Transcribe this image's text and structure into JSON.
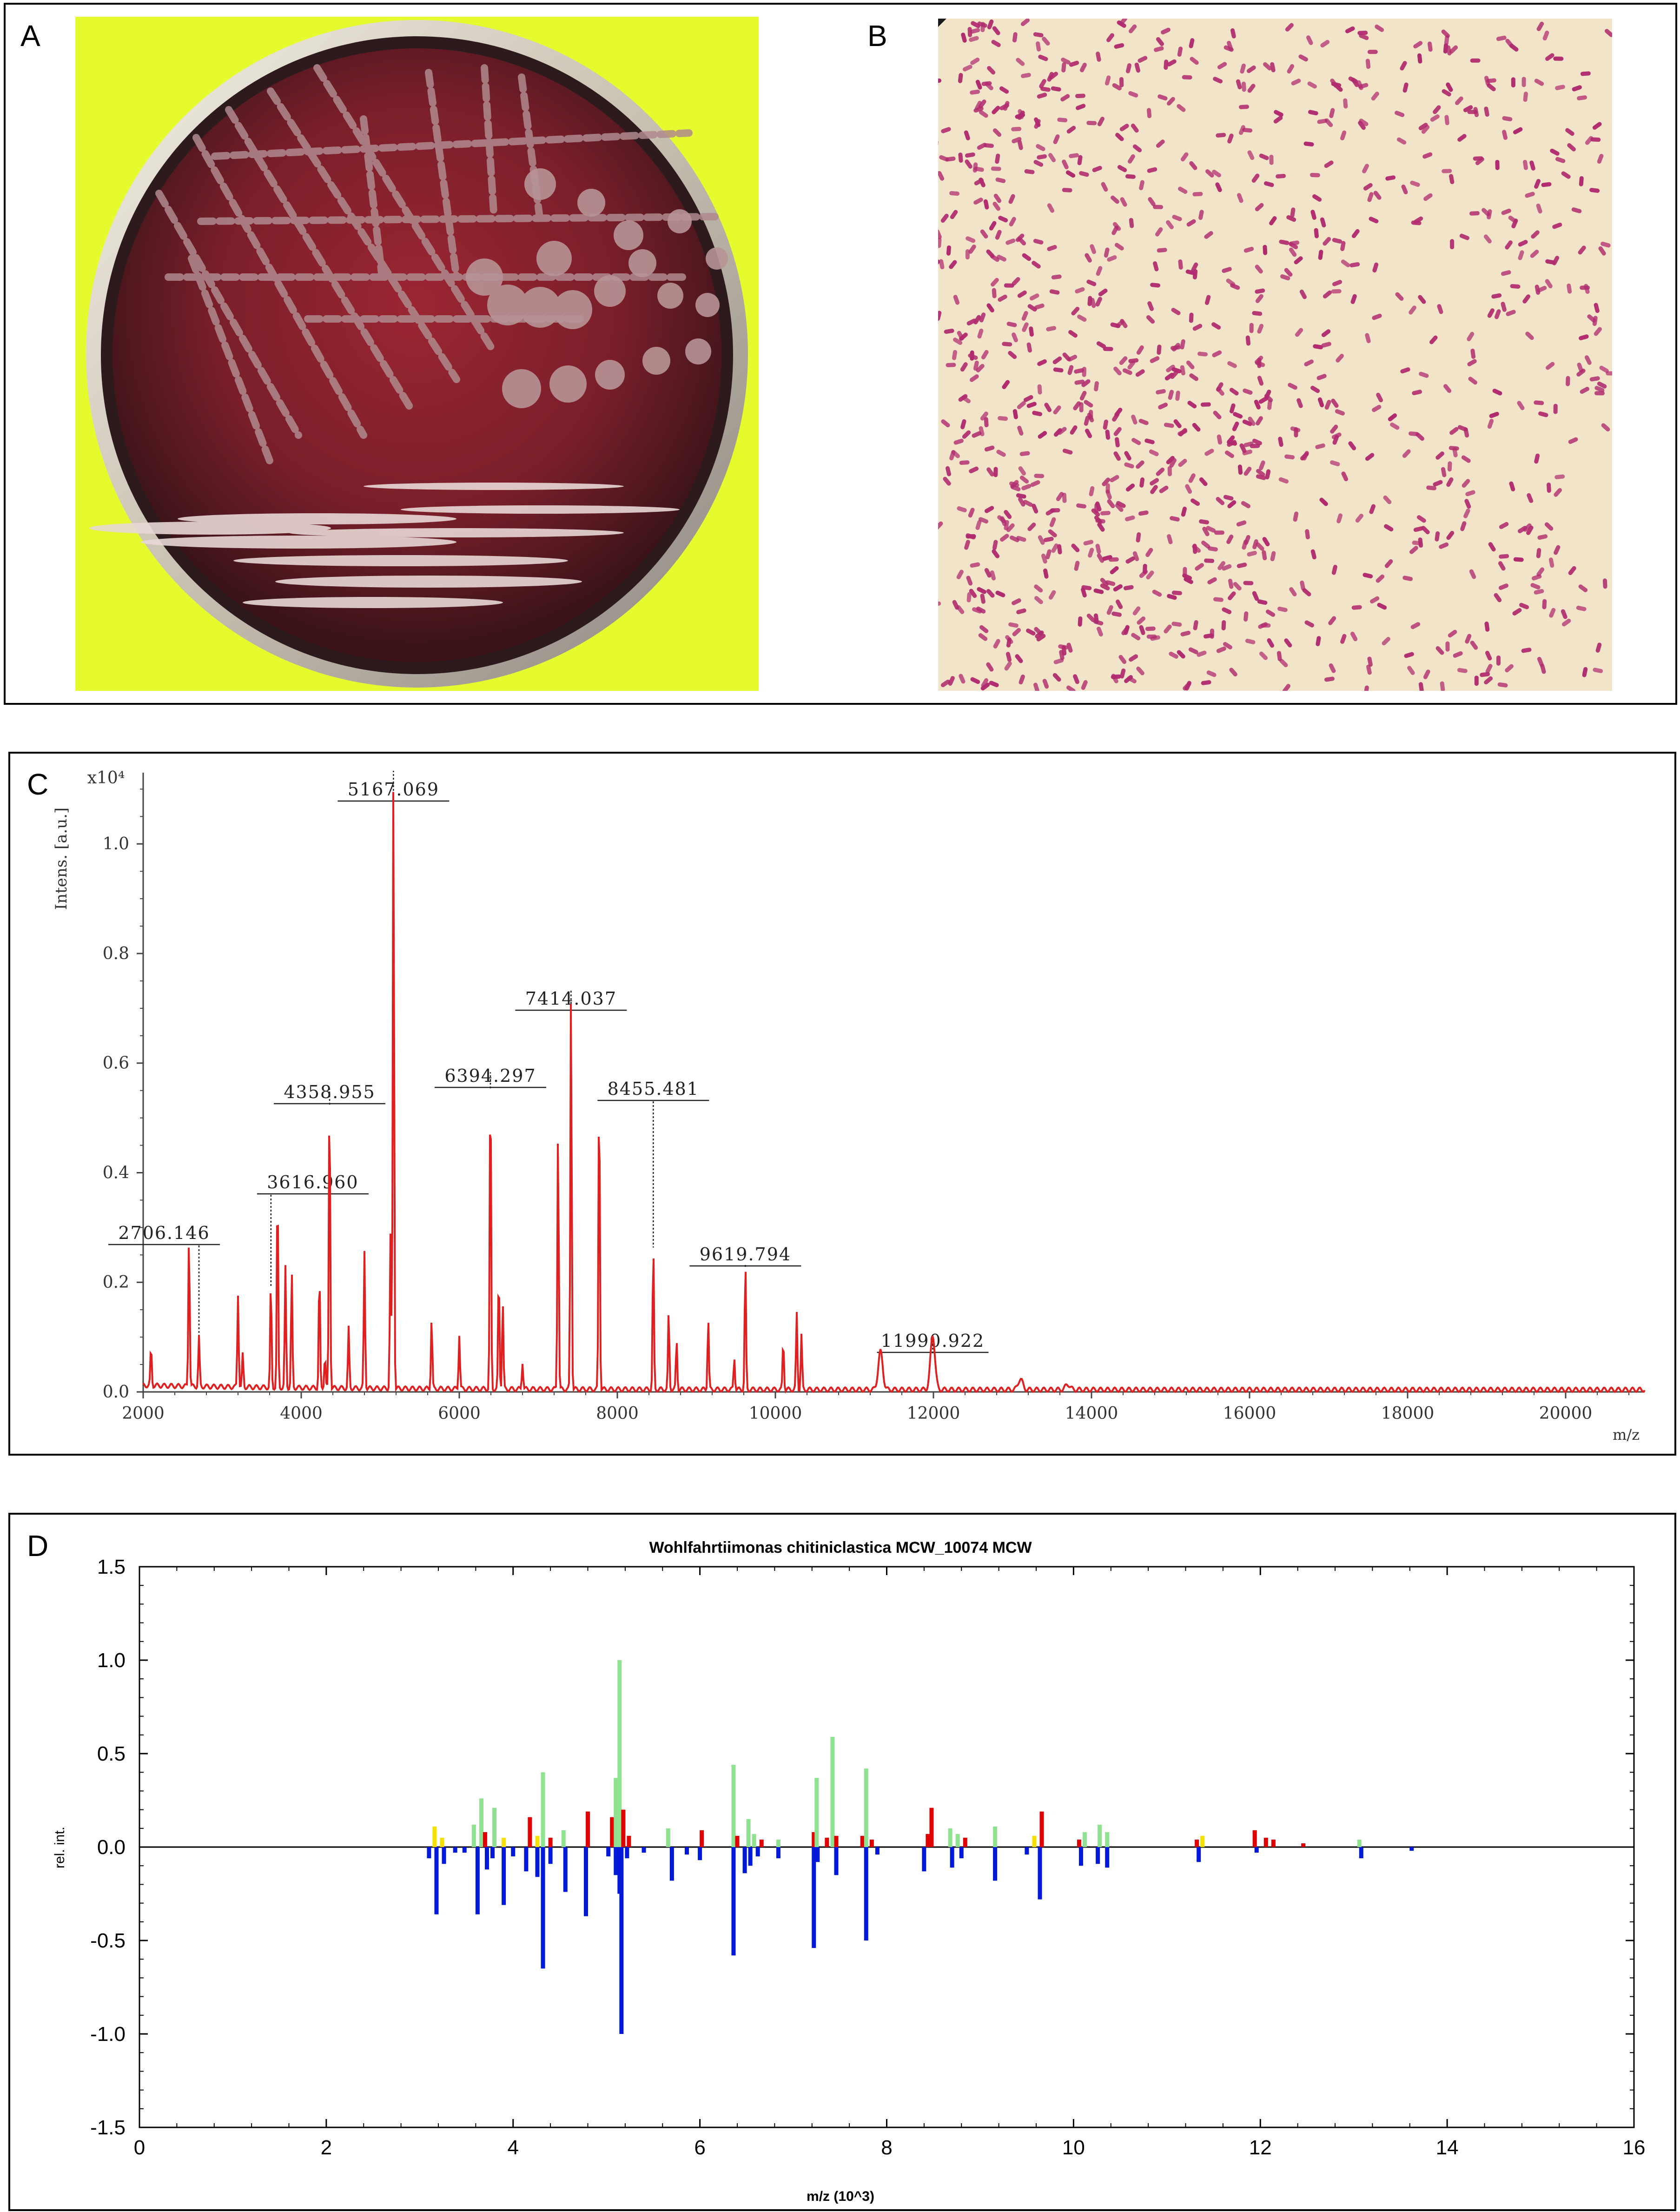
{
  "panels": {
    "a": {
      "letter": "A"
    },
    "b": {
      "letter": "B"
    },
    "c": {
      "letter": "C"
    },
    "d": {
      "letter": "D"
    }
  },
  "colors": {
    "plate_background": "#e6fb2d",
    "agar": "#7a1f2a",
    "gram_stain": "#b02a6e",
    "gram_background": "#f1e4c8",
    "spectrum_line": "#e02020",
    "match_green": "#8fe28f",
    "match_red": "#e00000",
    "match_yellow": "#f5e000",
    "reference_blue": "#0018d8"
  },
  "chart_data": [
    {
      "type": "line",
      "panel": "C",
      "ylabel": "Intens. [a.u.]",
      "y_multiplier": "x10⁴",
      "xlabel": "m/z",
      "xlim": [
        2000,
        21000
      ],
      "ylim": [
        0,
        1.13
      ],
      "x_ticks": [
        "2000",
        "4000",
        "6000",
        "8000",
        "10000",
        "12000",
        "14000",
        "16000",
        "18000",
        "20000"
      ],
      "y_ticks": [
        "0.0",
        "0.2",
        "0.4",
        "0.6",
        "0.8",
        "1.0"
      ],
      "peak_labels": [
        {
          "text": "2706.146",
          "x": 2706,
          "y": 0.09
        },
        {
          "text": "3616.960",
          "x": 3617,
          "y": 0.19
        },
        {
          "text": "4358.955",
          "x": 4359,
          "y": 0.55
        },
        {
          "text": "5167.069",
          "x": 5167,
          "y": 1.13
        },
        {
          "text": "6394.297",
          "x": 6394,
          "y": 0.58
        },
        {
          "text": "7414.037",
          "x": 7414,
          "y": 0.73
        },
        {
          "text": "8455.481",
          "x": 8455,
          "y": 0.26
        },
        {
          "text": "9619.794",
          "x": 9620,
          "y": 0.23
        },
        {
          "text": "11990.922",
          "x": 11991,
          "y": 0.1
        }
      ],
      "peaks": [
        [
          2100,
          0.07
        ],
        [
          2580,
          0.28
        ],
        [
          2706,
          0.09
        ],
        [
          3200,
          0.17
        ],
        [
          3260,
          0.06
        ],
        [
          3616,
          0.19
        ],
        [
          3700,
          0.37
        ],
        [
          3800,
          0.22
        ],
        [
          3880,
          0.21
        ],
        [
          4230,
          0.21
        ],
        [
          4300,
          0.06
        ],
        [
          4358,
          0.55
        ],
        [
          4600,
          0.11
        ],
        [
          4800,
          0.25
        ],
        [
          5130,
          0.28
        ],
        [
          5167,
          1.13
        ],
        [
          5650,
          0.13
        ],
        [
          6000,
          0.1
        ],
        [
          6394,
          0.58
        ],
        [
          6500,
          0.21
        ],
        [
          6550,
          0.16
        ],
        [
          6800,
          0.05
        ],
        [
          7250,
          0.48
        ],
        [
          7414,
          0.73
        ],
        [
          7770,
          0.56
        ],
        [
          8455,
          0.26
        ],
        [
          8650,
          0.14
        ],
        [
          8750,
          0.09
        ],
        [
          9150,
          0.13
        ],
        [
          9480,
          0.06
        ],
        [
          9620,
          0.23
        ],
        [
          10100,
          0.09
        ],
        [
          10270,
          0.14
        ],
        [
          10330,
          0.1
        ],
        [
          11330,
          0.07
        ],
        [
          11991,
          0.1
        ],
        [
          13100,
          0.02
        ],
        [
          13700,
          0.01
        ]
      ]
    },
    {
      "type": "bar",
      "panel": "D",
      "title": "Wohlfahrtiimonas chitiniclastica MCW_10074 MCW",
      "xlabel": "m/z (10^3)",
      "ylabel": "rel. int.",
      "xlim": [
        0,
        16
      ],
      "ylim": [
        -1.5,
        1.5
      ],
      "x_ticks": [
        "0",
        "2",
        "4",
        "6",
        "8",
        "10",
        "12",
        "14",
        "16"
      ],
      "y_ticks": [
        "1.5",
        "1.0",
        "0.5",
        "0.0",
        "-0.5",
        "-1.0",
        "-1.5"
      ],
      "upper_bars": [
        {
          "x": 3.16,
          "v": 0.11,
          "c": "yellow"
        },
        {
          "x": 3.24,
          "v": 0.05,
          "c": "yellow"
        },
        {
          "x": 3.58,
          "v": 0.12,
          "c": "green"
        },
        {
          "x": 3.66,
          "v": 0.26,
          "c": "green"
        },
        {
          "x": 3.7,
          "v": 0.08,
          "c": "red"
        },
        {
          "x": 3.8,
          "v": 0.21,
          "c": "green"
        },
        {
          "x": 3.9,
          "v": 0.05,
          "c": "yellow"
        },
        {
          "x": 4.18,
          "v": 0.16,
          "c": "red"
        },
        {
          "x": 4.26,
          "v": 0.06,
          "c": "yellow"
        },
        {
          "x": 4.32,
          "v": 0.4,
          "c": "green"
        },
        {
          "x": 4.4,
          "v": 0.05,
          "c": "red"
        },
        {
          "x": 4.54,
          "v": 0.09,
          "c": "green"
        },
        {
          "x": 4.8,
          "v": 0.19,
          "c": "red"
        },
        {
          "x": 5.06,
          "v": 0.16,
          "c": "red"
        },
        {
          "x": 5.1,
          "v": 0.37,
          "c": "green"
        },
        {
          "x": 5.14,
          "v": 1.0,
          "c": "green"
        },
        {
          "x": 5.18,
          "v": 0.2,
          "c": "red"
        },
        {
          "x": 5.24,
          "v": 0.06,
          "c": "red"
        },
        {
          "x": 5.66,
          "v": 0.1,
          "c": "green"
        },
        {
          "x": 6.02,
          "v": 0.09,
          "c": "red"
        },
        {
          "x": 6.36,
          "v": 0.44,
          "c": "green"
        },
        {
          "x": 6.4,
          "v": 0.06,
          "c": "red"
        },
        {
          "x": 6.52,
          "v": 0.15,
          "c": "green"
        },
        {
          "x": 6.58,
          "v": 0.07,
          "c": "green"
        },
        {
          "x": 6.66,
          "v": 0.04,
          "c": "red"
        },
        {
          "x": 6.84,
          "v": 0.04,
          "c": "green"
        },
        {
          "x": 7.22,
          "v": 0.08,
          "c": "red"
        },
        {
          "x": 7.25,
          "v": 0.37,
          "c": "green"
        },
        {
          "x": 7.36,
          "v": 0.05,
          "c": "red"
        },
        {
          "x": 7.42,
          "v": 0.59,
          "c": "green"
        },
        {
          "x": 7.46,
          "v": 0.06,
          "c": "red"
        },
        {
          "x": 7.74,
          "v": 0.06,
          "c": "red"
        },
        {
          "x": 7.78,
          "v": 0.42,
          "c": "green"
        },
        {
          "x": 7.84,
          "v": 0.04,
          "c": "red"
        },
        {
          "x": 8.44,
          "v": 0.07,
          "c": "red"
        },
        {
          "x": 8.48,
          "v": 0.21,
          "c": "red"
        },
        {
          "x": 8.68,
          "v": 0.1,
          "c": "green"
        },
        {
          "x": 8.76,
          "v": 0.07,
          "c": "green"
        },
        {
          "x": 8.84,
          "v": 0.05,
          "c": "red"
        },
        {
          "x": 9.16,
          "v": 0.11,
          "c": "green"
        },
        {
          "x": 9.58,
          "v": 0.06,
          "c": "yellow"
        },
        {
          "x": 9.66,
          "v": 0.19,
          "c": "red"
        },
        {
          "x": 10.06,
          "v": 0.04,
          "c": "red"
        },
        {
          "x": 10.12,
          "v": 0.08,
          "c": "green"
        },
        {
          "x": 10.28,
          "v": 0.12,
          "c": "green"
        },
        {
          "x": 10.36,
          "v": 0.08,
          "c": "green"
        },
        {
          "x": 11.32,
          "v": 0.04,
          "c": "red"
        },
        {
          "x": 11.38,
          "v": 0.06,
          "c": "yellow"
        },
        {
          "x": 11.94,
          "v": 0.09,
          "c": "red"
        },
        {
          "x": 12.06,
          "v": 0.05,
          "c": "red"
        },
        {
          "x": 12.14,
          "v": 0.04,
          "c": "red"
        },
        {
          "x": 12.46,
          "v": 0.02,
          "c": "red"
        },
        {
          "x": 13.06,
          "v": 0.04,
          "c": "green"
        }
      ],
      "lower_bars": [
        [
          3.1,
          -0.06
        ],
        [
          3.18,
          -0.36
        ],
        [
          3.26,
          -0.09
        ],
        [
          3.38,
          -0.03
        ],
        [
          3.48,
          -0.03
        ],
        [
          3.62,
          -0.36
        ],
        [
          3.72,
          -0.12
        ],
        [
          3.78,
          -0.06
        ],
        [
          3.9,
          -0.31
        ],
        [
          4.0,
          -0.05
        ],
        [
          4.14,
          -0.13
        ],
        [
          4.26,
          -0.16
        ],
        [
          4.32,
          -0.65
        ],
        [
          4.4,
          -0.09
        ],
        [
          4.56,
          -0.24
        ],
        [
          4.78,
          -0.37
        ],
        [
          5.02,
          -0.05
        ],
        [
          5.1,
          -0.15
        ],
        [
          5.14,
          -0.25
        ],
        [
          5.16,
          -1.0
        ],
        [
          5.22,
          -0.06
        ],
        [
          5.4,
          -0.03
        ],
        [
          5.7,
          -0.18
        ],
        [
          5.86,
          -0.04
        ],
        [
          6.0,
          -0.07
        ],
        [
          6.36,
          -0.58
        ],
        [
          6.48,
          -0.14
        ],
        [
          6.54,
          -0.1
        ],
        [
          6.62,
          -0.05
        ],
        [
          6.84,
          -0.06
        ],
        [
          7.22,
          -0.54
        ],
        [
          7.26,
          -0.08
        ],
        [
          7.46,
          -0.15
        ],
        [
          7.78,
          -0.5
        ],
        [
          7.9,
          -0.04
        ],
        [
          8.4,
          -0.13
        ],
        [
          8.7,
          -0.11
        ],
        [
          8.8,
          -0.06
        ],
        [
          9.16,
          -0.18
        ],
        [
          9.5,
          -0.04
        ],
        [
          9.64,
          -0.28
        ],
        [
          10.08,
          -0.1
        ],
        [
          10.26,
          -0.09
        ],
        [
          10.36,
          -0.11
        ],
        [
          11.34,
          -0.08
        ],
        [
          11.96,
          -0.03
        ],
        [
          13.08,
          -0.06
        ],
        [
          13.62,
          -0.02
        ]
      ]
    }
  ]
}
